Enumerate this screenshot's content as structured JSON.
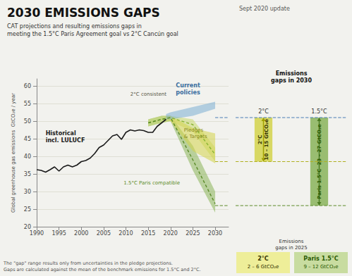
{
  "chart_data": {
    "type": "line",
    "title": "2030 EMISSIONS GAPS",
    "subtitle": "CAT projections and resulting emissions gaps in\nmeeting the 1.5°C Paris Agreement goal vs 2°C Cancún goal",
    "update": "Sept 2020 update",
    "ylabel": "Global greenhouse gas emissions  GtCO₂e / year",
    "xlim": [
      1990,
      2033
    ],
    "ylim": [
      20,
      62
    ],
    "xticks": [
      1990,
      1995,
      2000,
      2005,
      2010,
      2015,
      2020,
      2025,
      2030
    ],
    "yticks": [
      20,
      25,
      30,
      35,
      40,
      45,
      50,
      55,
      60
    ],
    "grid": true,
    "bg_color": "#f2f2ee",
    "series": [
      {
        "type": "band",
        "color": "#8ab45a",
        "x": [
          2015,
          2018,
          2020,
          2025,
          2030
        ],
        "lower": [
          48.5,
          49.5,
          50.0,
          36.0,
          24.0
        ],
        "upper": [
          50.5,
          51.5,
          51.5,
          43.0,
          30.0
        ]
      },
      {
        "type": "band",
        "color": "#c8d86e",
        "x": [
          2015,
          2018,
          2020,
          2025,
          2030
        ],
        "lower": [
          48.5,
          49.5,
          50.0,
          47.0,
          38.5
        ],
        "upper": [
          50.5,
          51.5,
          51.5,
          50.5,
          42.5
        ]
      },
      {
        "type": "band",
        "color": "#d4d44a",
        "x": [
          2019,
          2020,
          2025,
          2030
        ],
        "lower": [
          50.5,
          50.0,
          41.5,
          38.0
        ],
        "upper": [
          51.5,
          51.5,
          48.0,
          46.5
        ]
      },
      {
        "type": "band",
        "color": "#7bafd4",
        "x": [
          2019,
          2020,
          2025,
          2030
        ],
        "lower": [
          50.5,
          50.5,
          51.5,
          53.5
        ],
        "upper": [
          52.0,
          52.5,
          54.0,
          55.5
        ]
      },
      {
        "type": "line",
        "line_style": "dashed",
        "color": "#8ab432",
        "x": [
          2015,
          2018,
          2020,
          2025,
          2030
        ],
        "values": [
          49.5,
          50.5,
          51.0,
          49.0,
          40.5
        ]
      },
      {
        "type": "line",
        "line_style": "dashed",
        "color": "#5a8a28",
        "x": [
          2015,
          2018,
          2020,
          2025,
          2030
        ],
        "values": [
          49.5,
          50.5,
          51.0,
          39.0,
          26.5
        ]
      },
      {
        "type": "line",
        "line_style": "solid",
        "color": "#1a1a1a",
        "x": [
          1990,
          1991,
          1992,
          1993,
          1994,
          1995,
          1996,
          1997,
          1998,
          1999,
          2000,
          2001,
          2002,
          2003,
          2004,
          2005,
          2006,
          2007,
          2008,
          2009,
          2010,
          2011,
          2012,
          2013,
          2014,
          2015,
          2016,
          2017,
          2018,
          2019
        ],
        "values": [
          36.2,
          36.0,
          35.5,
          36.2,
          37.0,
          35.8,
          37.0,
          37.5,
          37.0,
          37.5,
          38.5,
          38.8,
          39.5,
          40.8,
          42.5,
          43.2,
          44.5,
          45.8,
          46.2,
          44.8,
          46.8,
          47.5,
          47.2,
          47.5,
          47.3,
          46.8,
          46.8,
          48.5,
          49.5,
          50.5
        ]
      }
    ],
    "reference_lines": [
      {
        "value": 51.0,
        "color": "#4a7db5"
      },
      {
        "value": 38.5,
        "color": "#b0b020"
      },
      {
        "value": 26.0,
        "color": "#5a8a28"
      }
    ],
    "annotations": [
      {
        "text": "2°C consistent",
        "color": "#555544"
      },
      {
        "text": "Current\npolicies",
        "color": "#3a6da0"
      },
      {
        "text": "Pledges\n& Targets",
        "color": "#888820"
      },
      {
        "text": "1.5°C Paris compatible",
        "color": "#5a8a28"
      },
      {
        "text": "Historical\nincl. LULUCF",
        "color": "#1a1a1a"
      }
    ],
    "gaps_2030": {
      "title": "Emissions\ngaps in 2030",
      "gaps": [
        {
          "heading": "2°C",
          "label": "2°C\n10 – 15 GtCO₂e",
          "from": 38.5,
          "to": 51.0,
          "color": "#d4d44a",
          "arrow_color": "#a0a000",
          "text_color": "#333300"
        },
        {
          "heading": "1.5°C",
          "label": "Paris 1.5°C  23 – 27 GtCO₂e",
          "from": 26.0,
          "to": 51.0,
          "color": "#8ab45a",
          "arrow_color": "#4a7a20",
          "text_color": "#2a5a00"
        }
      ]
    },
    "gaps_2025": {
      "title": "Emissions\ngaps in 2025",
      "boxes": [
        {
          "heading": "2°C",
          "label": "2 – 6 GtCO₂e",
          "color": "#eeee99",
          "text_color": "#333300"
        },
        {
          "heading": "Paris 1.5°C",
          "label": "9 – 12 GtCO₂e",
          "color": "#c8dca0",
          "text_color": "#2a5a00"
        }
      ]
    },
    "footnote": "The \"gap\" range results only from uncertainties in the pledge projections.\nGaps are calculated against the mean of the benchmark emissions for 1.5°C and 2°C."
  }
}
